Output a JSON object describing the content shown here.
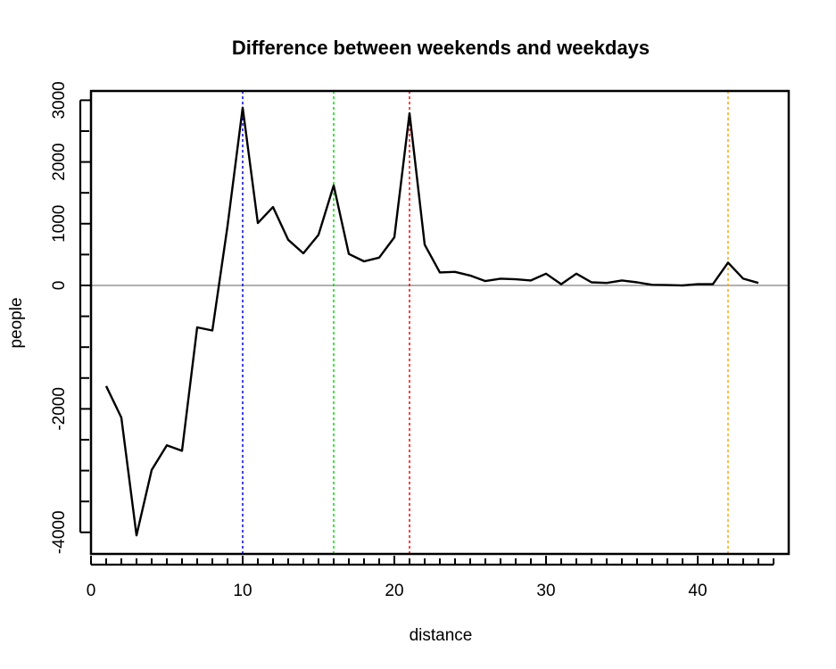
{
  "chart_data": {
    "type": "line",
    "title": "Difference between weekends and weekdays",
    "xlabel": "distance",
    "ylabel": "people",
    "xlim": [
      0,
      46
    ],
    "ylim": [
      -4350,
      3150
    ],
    "x_ticks": [
      0,
      10,
      20,
      30,
      40
    ],
    "y_ticks": [
      -4000,
      -2000,
      0,
      1000,
      2000,
      3000
    ],
    "y_tick_labels": [
      "-4000",
      "-2000",
      "0",
      "1000",
      "2000",
      "3000"
    ],
    "x_minor_step": 1,
    "y_minor_step": 500,
    "grid": false,
    "legend": "none",
    "series": [
      {
        "color": "#000000",
        "x": [
          1,
          2,
          3,
          4,
          5,
          6,
          7,
          8,
          9,
          10,
          11,
          12,
          13,
          14,
          15,
          16,
          17,
          18,
          19,
          20,
          21,
          22,
          23,
          24,
          25,
          26,
          27,
          28,
          29,
          30,
          31,
          32,
          33,
          34,
          35,
          36,
          37,
          38,
          39,
          40,
          41,
          42,
          43,
          44
        ],
        "values": [
          -1630,
          -2140,
          -4050,
          -2990,
          -2590,
          -2680,
          -680,
          -730,
          960,
          2880,
          1010,
          1270,
          740,
          520,
          820,
          1620,
          510,
          390,
          450,
          780,
          2790,
          660,
          210,
          220,
          160,
          70,
          110,
          100,
          80,
          190,
          20,
          190,
          50,
          40,
          80,
          50,
          10,
          5,
          0,
          20,
          20,
          370,
          110,
          40
        ]
      }
    ],
    "reference_lines": [
      {
        "orientation": "horizontal",
        "value": 0,
        "color": "#808080",
        "style": "solid"
      },
      {
        "orientation": "vertical",
        "value": 10,
        "color": "#0000ff",
        "style": "dotted"
      },
      {
        "orientation": "vertical",
        "value": 16,
        "color": "#00dd00",
        "style": "dotted"
      },
      {
        "orientation": "vertical",
        "value": 21,
        "color": "#ff0000",
        "style": "dotted"
      },
      {
        "orientation": "vertical",
        "value": 42,
        "color": "#ffa500",
        "style": "dotted"
      }
    ]
  }
}
